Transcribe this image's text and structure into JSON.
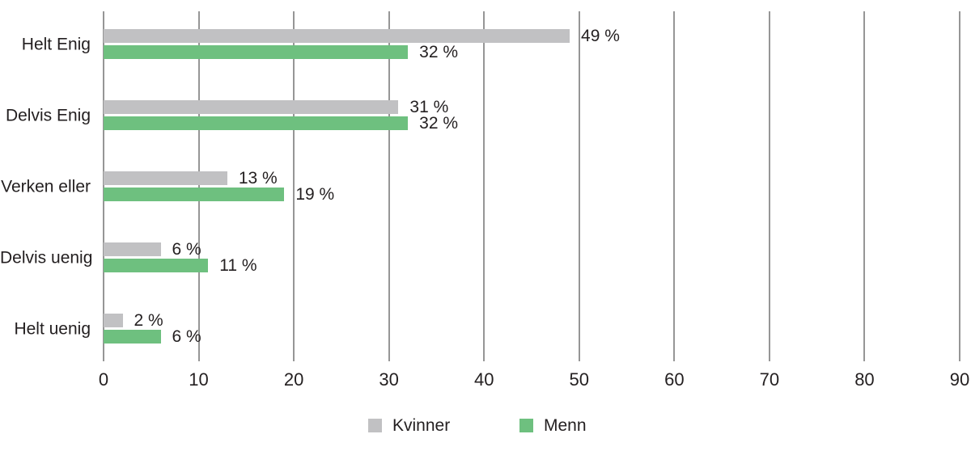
{
  "chart_data": {
    "type": "bar",
    "orientation": "horizontal",
    "title": "",
    "xlabel": "",
    "ylabel": "",
    "categories": [
      "Helt Enig",
      "Delvis Enig",
      "Verken eller",
      "Delvis uenig",
      "Helt uenig"
    ],
    "series": [
      {
        "name": "Kvinner",
        "color": "#c1c1c3",
        "values": [
          49,
          31,
          13,
          6,
          2
        ],
        "labels": [
          "49 %",
          "31 %",
          "13 %",
          "6 %",
          "2 %"
        ]
      },
      {
        "name": "Menn",
        "color": "#6ec07f",
        "values": [
          32,
          32,
          19,
          11,
          6
        ],
        "labels": [
          "32 %",
          "32 %",
          "19 %",
          "11 %",
          "6 %"
        ]
      }
    ],
    "xlim": [
      0,
      90
    ],
    "xticks": [
      0,
      10,
      20,
      30,
      40,
      50,
      60,
      70,
      80,
      90
    ],
    "grid": "vertical",
    "gridline_color": "#969696",
    "text_color": "#231f20",
    "legend_position": "bottom"
  }
}
